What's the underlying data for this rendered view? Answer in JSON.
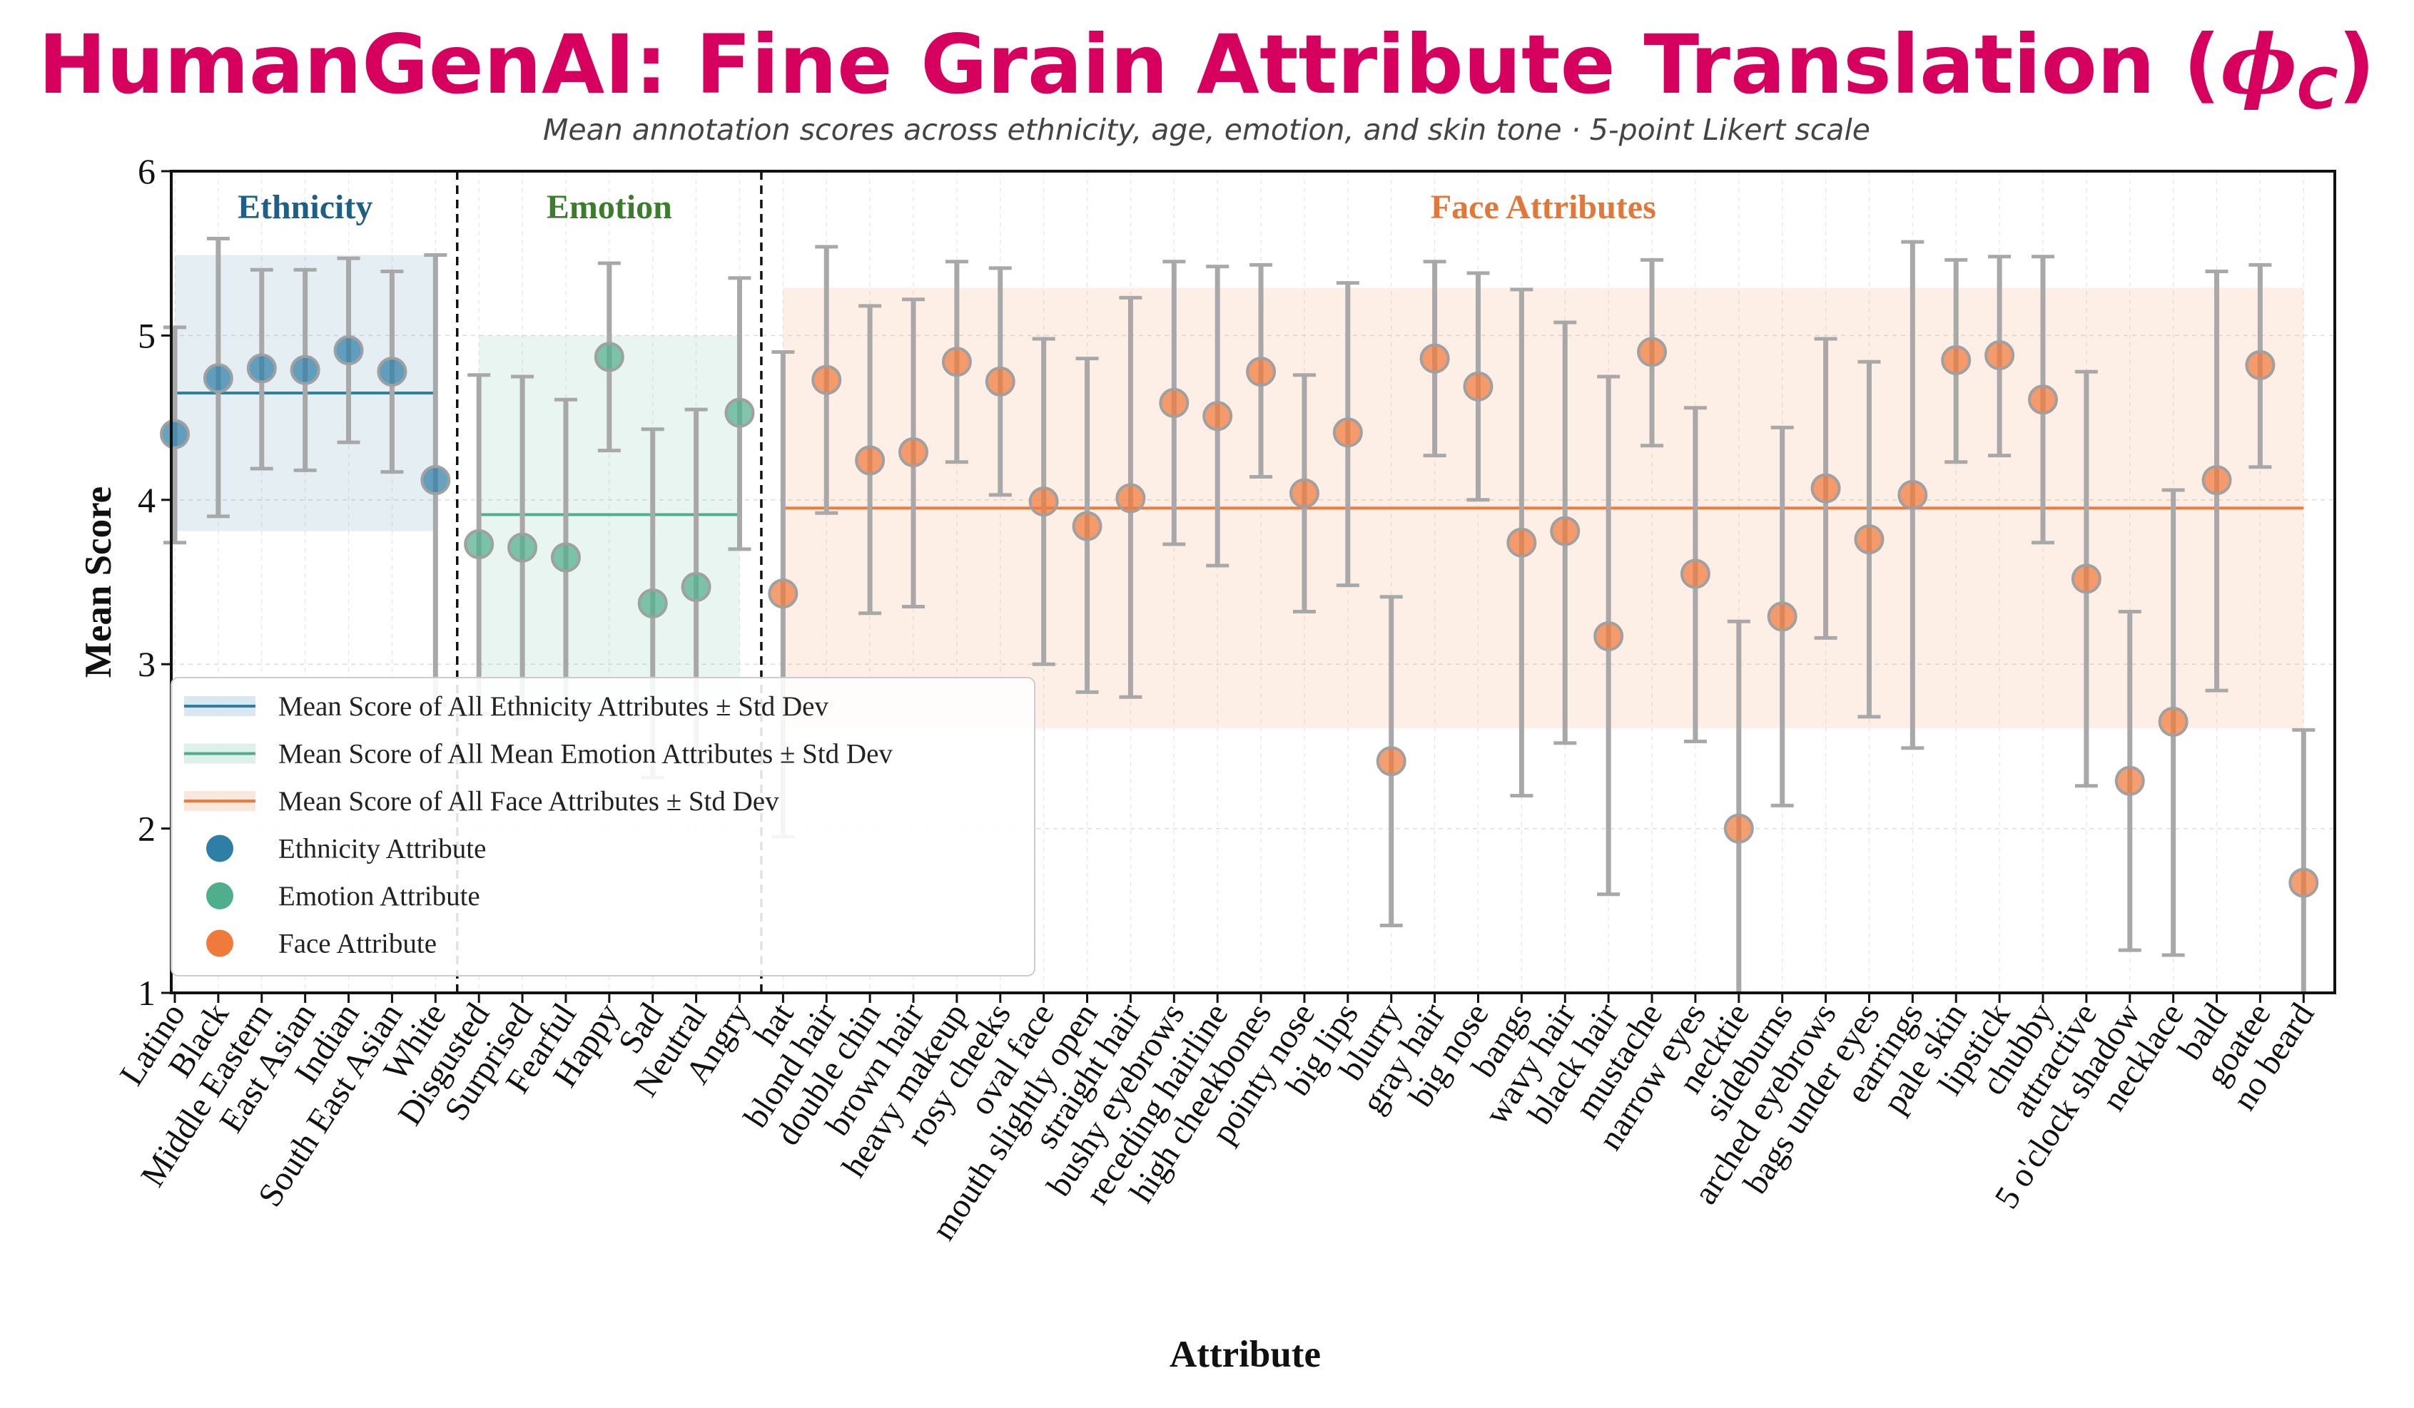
{
  "chart_data": {
    "type": "scatter",
    "title": "HumanGenAI: Fine Grain Attribute Translation (",
    "title_symbol": "ϕ",
    "title_subscript": "C",
    "title_close": ")",
    "subtitle": "Mean annotation scores across ethnicity, age, emotion, and skin tone  ·  5-point Likert scale",
    "xlabel": "Attribute",
    "ylabel": "Mean Score",
    "ylim": [
      1,
      6
    ],
    "yticks": [
      "1",
      "2",
      "3",
      "4",
      "5",
      "6"
    ],
    "grid": true,
    "legend_position": "lower-left",
    "colors": {
      "title": "#d6005f",
      "ethnicity": "#2e7ea6",
      "emotion": "#4fae8c",
      "face": "#f07a3c",
      "ethnicity_label": "#1f5f86",
      "emotion_label": "#3b7d2c",
      "face_label": "#e2773a",
      "errorbar": "#a8a8a8"
    },
    "groups": [
      {
        "key": "ethnicity",
        "label": "Ethnicity",
        "mean": 4.65,
        "band": [
          3.81,
          5.49
        ]
      },
      {
        "key": "emotion",
        "label": "Emotion",
        "mean": 3.91,
        "band": [
          2.8,
          5.0
        ]
      },
      {
        "key": "face",
        "label": "Face Attributes",
        "mean": 3.95,
        "band": [
          2.61,
          5.29
        ]
      }
    ],
    "series": [
      {
        "name": "Ethnicity Attribute",
        "group": "ethnicity",
        "categories": [
          "Latino",
          "Black",
          "Middle Eastern",
          "East Asian",
          "Indian",
          "South East Asian",
          "White"
        ],
        "values": [
          4.4,
          4.74,
          4.8,
          4.79,
          4.91,
          4.78,
          4.12
        ],
        "err_low": [
          3.74,
          3.9,
          4.19,
          4.18,
          4.35,
          4.17,
          2.75
        ],
        "err_high": [
          5.05,
          5.59,
          5.4,
          5.4,
          5.47,
          5.39,
          5.49
        ]
      },
      {
        "name": "Emotion Attribute",
        "group": "emotion",
        "categories": [
          "Disgusted",
          "Surprised",
          "Fearful",
          "Happy",
          "Sad",
          "Neutral",
          "Angry"
        ],
        "values": [
          3.73,
          3.71,
          3.65,
          4.87,
          3.37,
          3.47,
          4.53
        ],
        "err_low": [
          2.7,
          2.67,
          2.69,
          4.3,
          2.31,
          2.39,
          3.7
        ],
        "err_high": [
          4.76,
          4.75,
          4.61,
          5.44,
          4.43,
          4.55,
          5.35
        ]
      },
      {
        "name": "Face Attribute",
        "group": "face",
        "categories": [
          "hat",
          "blond hair",
          "double chin",
          "brown hair",
          "heavy makeup",
          "rosy cheeks",
          "oval face",
          "mouth slightly open",
          "straight hair",
          "bushy eyebrows",
          "receding hairline",
          "high cheekbones",
          "pointy nose",
          "big lips",
          "blurry",
          "gray hair",
          "big nose",
          "bangs",
          "wavy hair",
          "black hair",
          "mustache",
          "narrow eyes",
          "necktie",
          "sideburns",
          "arched eyebrows",
          "bags under eyes",
          "earrings",
          "pale skin",
          "lipstick",
          "chubby",
          "attractive",
          "5 o'clock shadow",
          "necklace",
          "bald",
          "goatee",
          "no beard"
        ],
        "values": [
          3.43,
          4.73,
          4.24,
          4.29,
          4.84,
          4.72,
          3.99,
          3.84,
          4.01,
          4.59,
          4.51,
          4.78,
          4.04,
          4.41,
          2.41,
          4.86,
          4.69,
          3.74,
          3.81,
          3.17,
          4.9,
          3.55,
          2.0,
          3.29,
          4.07,
          3.76,
          4.03,
          4.85,
          4.88,
          4.61,
          3.52,
          2.29,
          2.65,
          4.12,
          4.82,
          1.67
        ],
        "err_low": [
          1.95,
          3.92,
          3.31,
          3.35,
          4.23,
          4.03,
          3.0,
          2.83,
          2.8,
          3.73,
          3.6,
          4.14,
          3.32,
          3.48,
          1.41,
          4.27,
          4.0,
          2.2,
          2.52,
          1.6,
          4.33,
          2.53,
          1.0,
          2.14,
          3.16,
          2.68,
          2.49,
          4.23,
          4.27,
          3.74,
          2.26,
          1.26,
          1.23,
          2.84,
          4.2,
          1.0
        ],
        "err_high": [
          4.9,
          5.54,
          5.18,
          5.22,
          5.45,
          5.41,
          4.98,
          4.86,
          5.23,
          5.45,
          5.42,
          5.43,
          4.76,
          5.32,
          3.41,
          5.45,
          5.38,
          5.28,
          5.08,
          4.75,
          5.46,
          4.56,
          3.26,
          4.44,
          4.98,
          4.84,
          5.57,
          5.46,
          5.48,
          5.48,
          4.78,
          3.32,
          4.06,
          5.39,
          5.43,
          2.6
        ]
      }
    ],
    "legend": [
      {
        "label": "Mean Score of All Ethnicity Attributes ± Std Dev",
        "kind": "band",
        "group": "ethnicity"
      },
      {
        "label": "Mean Score of All Mean Emotion Attributes ± Std Dev",
        "kind": "band",
        "group": "emotion"
      },
      {
        "label": "Mean Score of All Face Attributes ± Std Dev",
        "kind": "band",
        "group": "face"
      },
      {
        "label": "Ethnicity Attribute",
        "kind": "marker",
        "group": "ethnicity"
      },
      {
        "label": "Emotion Attribute",
        "kind": "marker",
        "group": "emotion"
      },
      {
        "label": "Face Attribute",
        "kind": "marker",
        "group": "face"
      }
    ]
  }
}
